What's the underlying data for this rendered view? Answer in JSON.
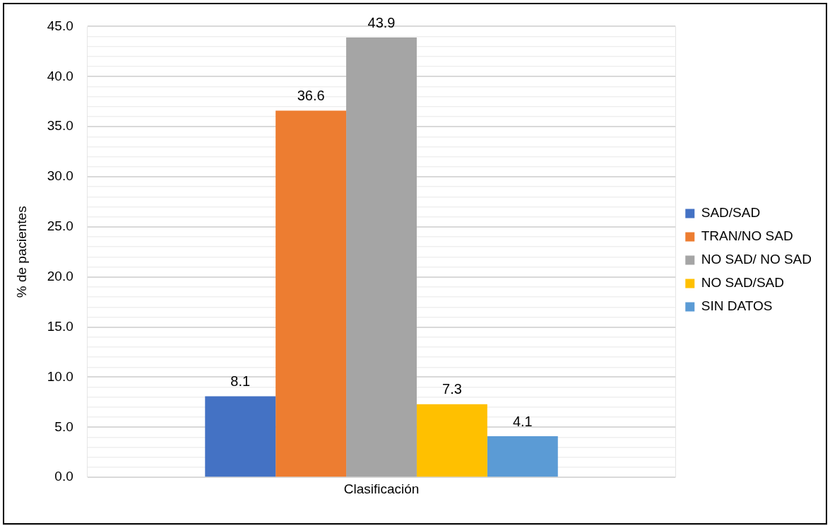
{
  "chart_data": {
    "type": "bar",
    "ylabel": "% de pacientes",
    "categories": [
      "Clasificación"
    ],
    "series": [
      {
        "name": "SAD/SAD",
        "color": "#4472c4",
        "values": [
          8.1
        ]
      },
      {
        "name": "TRAN/NO SAD",
        "color": "#ed7d31",
        "values": [
          36.6
        ]
      },
      {
        "name": "NO SAD/ NO SAD",
        "color": "#a5a5a5",
        "values": [
          43.9
        ]
      },
      {
        "name": "NO SAD/SAD",
        "color": "#ffc000",
        "values": [
          7.3
        ]
      },
      {
        "name": "SIN DATOS",
        "color": "#5b9bd5",
        "values": [
          4.1
        ]
      }
    ],
    "ylim": [
      0,
      45
    ],
    "yticks": [
      {
        "value": 0,
        "label": "0.0"
      },
      {
        "value": 1,
        "label": null
      },
      {
        "value": 2,
        "label": null
      },
      {
        "value": 3,
        "label": null
      },
      {
        "value": 4,
        "label": null
      },
      {
        "value": 5,
        "label": "5.0"
      },
      {
        "value": 6,
        "label": null
      },
      {
        "value": 7,
        "label": null
      },
      {
        "value": 8,
        "label": null
      },
      {
        "value": 9,
        "label": null
      },
      {
        "value": 10,
        "label": "10.0"
      },
      {
        "value": 11,
        "label": null
      },
      {
        "value": 12,
        "label": null
      },
      {
        "value": 13,
        "label": null
      },
      {
        "value": 14,
        "label": null
      },
      {
        "value": 15,
        "label": "15.0"
      },
      {
        "value": 16,
        "label": null
      },
      {
        "value": 17,
        "label": null
      },
      {
        "value": 18,
        "label": null
      },
      {
        "value": 19,
        "label": null
      },
      {
        "value": 20,
        "label": "20.0"
      },
      {
        "value": 21,
        "label": null
      },
      {
        "value": 22,
        "label": null
      },
      {
        "value": 23,
        "label": null
      },
      {
        "value": 24,
        "label": null
      },
      {
        "value": 25,
        "label": "25.0"
      },
      {
        "value": 26,
        "label": null
      },
      {
        "value": 27,
        "label": null
      },
      {
        "value": 28,
        "label": null
      },
      {
        "value": 29,
        "label": null
      },
      {
        "value": 30,
        "label": "30.0"
      },
      {
        "value": 31,
        "label": null
      },
      {
        "value": 32,
        "label": null
      },
      {
        "value": 33,
        "label": null
      },
      {
        "value": 34,
        "label": null
      },
      {
        "value": 35,
        "label": "35.0"
      },
      {
        "value": 36,
        "label": null
      },
      {
        "value": 37,
        "label": null
      },
      {
        "value": 38,
        "label": null
      },
      {
        "value": 39,
        "label": null
      },
      {
        "value": 40,
        "label": "40.0"
      },
      {
        "value": 41,
        "label": null
      },
      {
        "value": 42,
        "label": null
      },
      {
        "value": 43,
        "label": null
      },
      {
        "value": 44,
        "label": null
      },
      {
        "value": 45,
        "label": "45.0"
      }
    ],
    "grid": true,
    "legend": "right",
    "data_labels": true
  }
}
